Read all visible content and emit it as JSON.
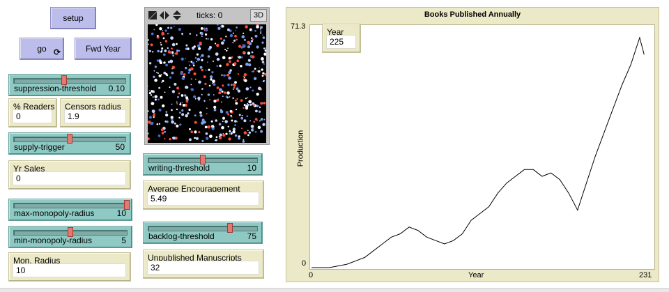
{
  "buttons": {
    "setup": "setup",
    "go": "go",
    "go_forever_glyph": "⟳",
    "fwd_year": "Fwd Year"
  },
  "sliders": {
    "suppression": {
      "name": "suppression-threshold",
      "value": "0.10",
      "level": 0.45
    },
    "supply": {
      "name": "supply-trigger",
      "value": "50",
      "level": 0.5
    },
    "max_monopoly": {
      "name": "max-monopoly-radius",
      "value": "10",
      "level": 1.0
    },
    "min_monopoly": {
      "name": "min-monopoly-radius",
      "value": "5",
      "level": 0.5
    },
    "writing": {
      "name": "writing-threshold",
      "value": "10",
      "level": 0.5
    },
    "backlog": {
      "name": "backlog-threshold",
      "value": "75",
      "level": 0.75
    }
  },
  "monitors": {
    "readers": {
      "label": "% Readers",
      "value": "0"
    },
    "censors": {
      "label": "Censors radius",
      "value": "1.9"
    },
    "yr_sales": {
      "label": "Yr Sales",
      "value": "0"
    },
    "mon_radius": {
      "label": "Mon. Radius",
      "value": "10"
    },
    "avg_encouragement": {
      "label": "Average Encouragement",
      "value": "5.49"
    },
    "unpublished": {
      "label": "Unpublished Manuscripts",
      "value": "32"
    }
  },
  "view": {
    "ticks_label": "ticks: 0",
    "threed_button": "3D",
    "icons": [
      "resize-icon",
      "arrows-horizontal-icon",
      "arrows-vertical-icon"
    ]
  },
  "plot": {
    "year_monitor": {
      "label": "Year",
      "value": "225"
    }
  },
  "chart_data": {
    "type": "line",
    "title": "Books Published Annually",
    "xlabel": "Year",
    "ylabel": "Production",
    "xlim": [
      0,
      231
    ],
    "ylim": [
      0,
      71.3
    ],
    "x_tick_labels": [
      "0",
      "231"
    ],
    "y_tick_labels": [
      "0",
      "71.3"
    ],
    "grid": false,
    "legend": "none",
    "color": "#000000",
    "series": [
      {
        "x": [
          0,
          6,
          12,
          18,
          24,
          30,
          36,
          42,
          48,
          54,
          60,
          66,
          72,
          78,
          84,
          90,
          96,
          102,
          108,
          114,
          120,
          126,
          132,
          138,
          144,
          150,
          156,
          162,
          168,
          174,
          180,
          186,
          192,
          198,
          204,
          210,
          216,
          222,
          225
        ],
        "y": [
          0,
          0,
          0,
          0.5,
          1,
          2,
          3,
          5,
          7,
          9,
          10,
          12,
          11,
          9,
          8,
          7,
          8,
          10,
          14,
          16,
          18,
          22,
          25,
          27,
          29,
          29,
          27,
          28,
          26,
          22,
          17,
          25,
          33,
          40,
          47,
          54,
          60,
          68,
          63
        ]
      }
    ]
  }
}
